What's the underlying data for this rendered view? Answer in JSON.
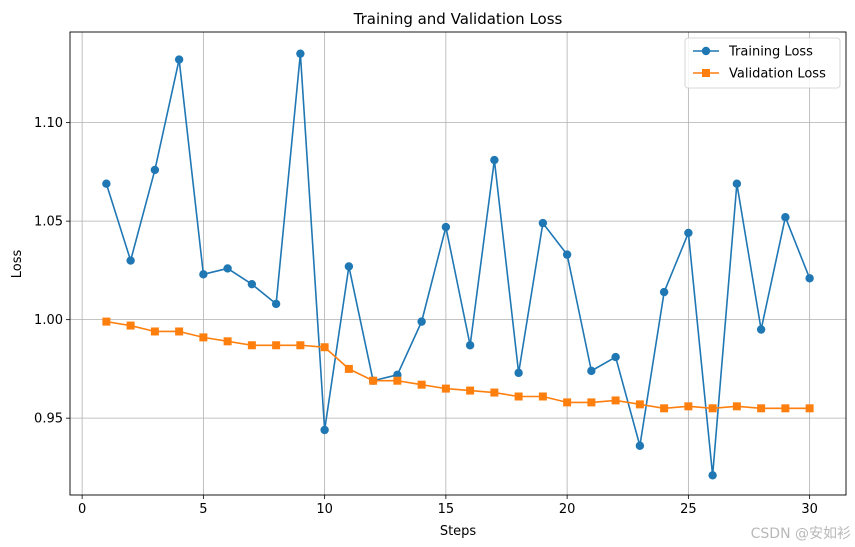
{
  "chart_data": {
    "type": "line",
    "title": "Training and Validation Loss",
    "xlabel": "Steps",
    "ylabel": "Loss",
    "xlim": [
      -0.5,
      31.5
    ],
    "ylim": [
      0.911,
      1.146
    ],
    "x_ticks": [
      0,
      5,
      10,
      15,
      20,
      25,
      30
    ],
    "x_tick_labels": [
      "0",
      "5",
      "10",
      "15",
      "20",
      "25",
      "30"
    ],
    "y_ticks": [
      0.95,
      1.0,
      1.05,
      1.1
    ],
    "y_tick_labels": [
      "0.95",
      "1.00",
      "1.05",
      "1.10"
    ],
    "grid": true,
    "legend_position": "top-right",
    "x": [
      1,
      2,
      3,
      4,
      5,
      6,
      7,
      8,
      9,
      10,
      11,
      12,
      13,
      14,
      15,
      16,
      17,
      18,
      19,
      20,
      21,
      22,
      23,
      24,
      25,
      26,
      27,
      28,
      29,
      30
    ],
    "series": [
      {
        "name": "Training Loss",
        "color": "#1f77b4",
        "marker": "circle",
        "values": [
          1.069,
          1.03,
          1.076,
          1.132,
          1.023,
          1.026,
          1.018,
          1.008,
          1.135,
          0.944,
          1.027,
          0.969,
          0.972,
          0.999,
          1.047,
          0.987,
          1.081,
          0.973,
          1.049,
          1.033,
          0.974,
          0.981,
          0.936,
          1.014,
          1.044,
          0.921,
          1.069,
          0.995,
          1.052,
          1.021
        ]
      },
      {
        "name": "Validation Loss",
        "color": "#ff7f0e",
        "marker": "square",
        "values": [
          0.999,
          0.997,
          0.994,
          0.994,
          0.991,
          0.989,
          0.987,
          0.987,
          0.987,
          0.986,
          0.975,
          0.969,
          0.969,
          0.967,
          0.965,
          0.964,
          0.963,
          0.961,
          0.961,
          0.958,
          0.958,
          0.959,
          0.957,
          0.955,
          0.956,
          0.955,
          0.956,
          0.955,
          0.955,
          0.955
        ]
      }
    ]
  },
  "watermark": "CSDN @安如衫"
}
